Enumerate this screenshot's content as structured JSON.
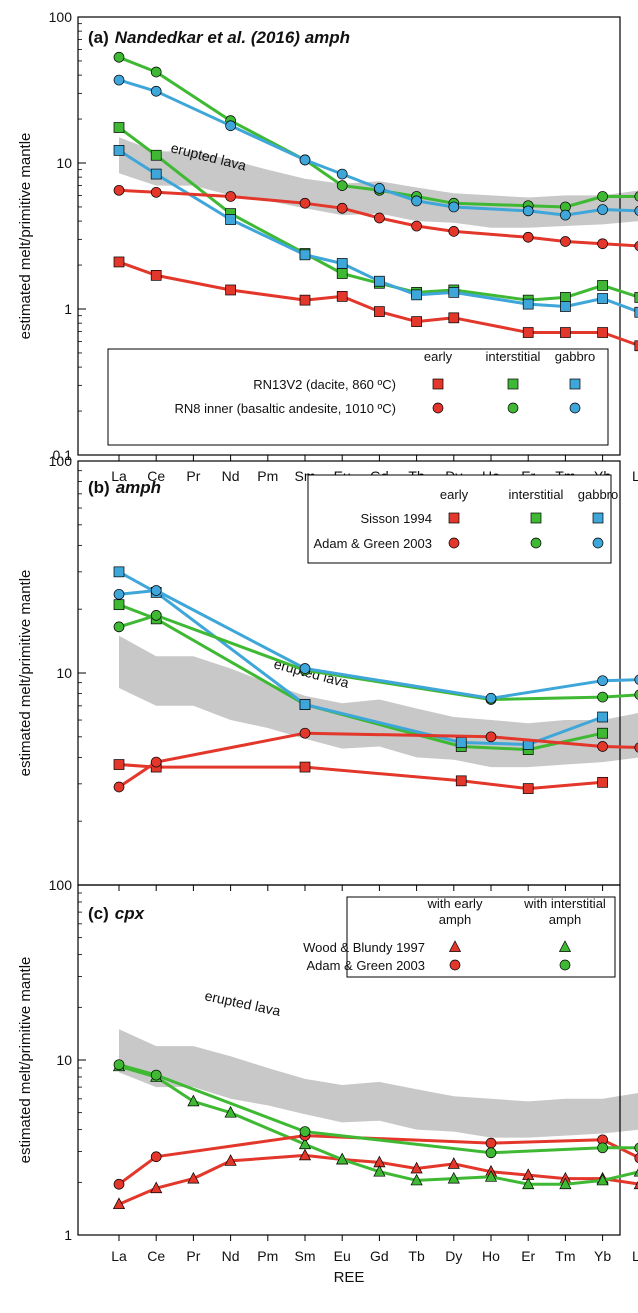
{
  "chart_data": [
    {
      "panel": "a",
      "type": "line",
      "log_y": true,
      "panel_letter": "(a)",
      "title": "Nandedkar et al. (2016) amph",
      "xlabel": "REE",
      "ylabel": "estimated melt/primitive mantle",
      "ylim": [
        0.1,
        100
      ],
      "y_ticks": [
        "100",
        "10",
        "1",
        "0.1"
      ],
      "categories": [
        "La",
        "Ce",
        "Pr",
        "Nd",
        "Pm",
        "Sm",
        "Eu",
        "Gd",
        "Tb",
        "Dy",
        "Ho",
        "Er",
        "Tm",
        "Yb",
        "Lu"
      ],
      "band": {
        "label": "erupted lava",
        "upper": [
          15.0,
          12.0,
          12.0,
          10.5,
          9.0,
          7.8,
          7.2,
          7.5,
          6.8,
          6.2,
          6.0,
          5.8,
          6.0,
          6.0,
          6.5
        ],
        "lower": [
          8.5,
          7.0,
          7.0,
          6.0,
          5.5,
          4.9,
          4.4,
          4.5,
          4.0,
          3.9,
          3.6,
          3.6,
          3.7,
          3.8,
          4.0
        ]
      },
      "legend": {
        "column_headers": [
          "early",
          "interstitial",
          "gabbro"
        ],
        "rows": [
          {
            "label": "RN13V2 (dacite, 860 ºC)",
            "marker": "square"
          },
          {
            "label": "RN8 inner (basaltic andesite, 1010 ºC)",
            "marker": "circle"
          }
        ]
      },
      "colors": {
        "early": "#e2372a",
        "interstitial": "#3fb934",
        "gabbro": "#3fa6d9",
        "band": "#c8c8c8"
      },
      "series": [
        {
          "group": "early",
          "marker": "square",
          "x": [
            "La",
            "Ce",
            "Nd",
            "Sm",
            "Eu",
            "Gd",
            "Tb",
            "Dy",
            "Er",
            "Tm",
            "Yb",
            "Lu"
          ],
          "values": [
            2.1,
            1.7,
            1.35,
            1.15,
            1.22,
            0.96,
            0.82,
            0.87,
            0.69,
            0.69,
            0.69,
            0.56
          ]
        },
        {
          "group": "interstitial",
          "marker": "square",
          "x": [
            "La",
            "Ce",
            "Nd",
            "Sm",
            "Eu",
            "Gd",
            "Tb",
            "Dy",
            "Er",
            "Tm",
            "Yb",
            "Lu"
          ],
          "values": [
            17.5,
            11.3,
            4.5,
            2.4,
            1.75,
            1.5,
            1.3,
            1.35,
            1.15,
            1.2,
            1.45,
            1.2
          ]
        },
        {
          "group": "gabbro",
          "marker": "square",
          "x": [
            "La",
            "Ce",
            "Nd",
            "Sm",
            "Eu",
            "Gd",
            "Tb",
            "Dy",
            "Er",
            "Tm",
            "Yb",
            "Lu"
          ],
          "values": [
            12.2,
            8.4,
            4.1,
            2.35,
            2.05,
            1.55,
            1.25,
            1.3,
            1.08,
            1.04,
            1.18,
            0.95
          ]
        },
        {
          "group": "early",
          "marker": "circle",
          "x": [
            "La",
            "Ce",
            "Nd",
            "Sm",
            "Eu",
            "Gd",
            "Tb",
            "Dy",
            "Er",
            "Tm",
            "Yb",
            "Lu"
          ],
          "values": [
            6.5,
            6.3,
            5.9,
            5.3,
            4.9,
            4.2,
            3.7,
            3.4,
            3.1,
            2.9,
            2.8,
            2.7
          ]
        },
        {
          "group": "interstitial",
          "marker": "circle",
          "x": [
            "La",
            "Ce",
            "Nd",
            "Sm",
            "Eu",
            "Gd",
            "Tb",
            "Dy",
            "Er",
            "Tm",
            "Yb",
            "Lu"
          ],
          "values": [
            53,
            42,
            19.5,
            10.5,
            7.0,
            6.5,
            5.9,
            5.3,
            5.1,
            5.0,
            5.9,
            5.9
          ]
        },
        {
          "group": "gabbro",
          "marker": "circle",
          "x": [
            "La",
            "Ce",
            "Nd",
            "Sm",
            "Eu",
            "Gd",
            "Tb",
            "Dy",
            "Er",
            "Tm",
            "Yb",
            "Lu"
          ],
          "values": [
            37,
            31,
            18,
            10.5,
            8.4,
            6.7,
            5.5,
            5.0,
            4.7,
            4.4,
            4.8,
            4.7
          ]
        }
      ]
    },
    {
      "panel": "b",
      "type": "line",
      "log_y": true,
      "panel_letter": "(b)",
      "title": "amph",
      "xlabel": "",
      "ylabel": "estimated melt/primitive mantle",
      "ylim": [
        1,
        100
      ],
      "y_ticks": [
        "100",
        "10"
      ],
      "categories": [
        "La",
        "Ce",
        "Pr",
        "Nd",
        "Pm",
        "Sm",
        "Eu",
        "Gd",
        "Tb",
        "Dy",
        "Ho",
        "Er",
        "Tm",
        "Yb",
        "Lu"
      ],
      "band": {
        "label": "erupted lava",
        "upper": [
          15.0,
          12.0,
          12.0,
          10.5,
          9.0,
          7.8,
          7.2,
          7.5,
          6.8,
          6.2,
          6.0,
          5.8,
          6.0,
          6.0,
          6.5
        ],
        "lower": [
          8.5,
          7.0,
          7.0,
          6.0,
          5.5,
          4.9,
          4.4,
          4.5,
          4.0,
          3.9,
          3.6,
          3.6,
          3.7,
          3.8,
          4.0
        ]
      },
      "legend": {
        "column_headers": [
          "early",
          "interstitial",
          "gabbro"
        ],
        "rows": [
          {
            "label": "Sisson 1994",
            "marker": "square"
          },
          {
            "label": "Adam & Green 2003",
            "marker": "circle"
          }
        ]
      },
      "colors": {
        "early": "#e2372a",
        "interstitial": "#3fb934",
        "gabbro": "#3fa6d9",
        "band": "#c8c8c8"
      },
      "series": [
        {
          "group": "early",
          "marker": "square",
          "x": [
            0,
            1,
            5,
            9.2,
            11,
            13
          ],
          "values": [
            3.7,
            3.6,
            3.6,
            3.1,
            2.85,
            3.05
          ]
        },
        {
          "group": "interstitial",
          "marker": "square",
          "x": [
            0,
            1,
            5,
            9.2,
            11,
            13
          ],
          "values": [
            21,
            18,
            7.1,
            4.5,
            4.35,
            5.2
          ]
        },
        {
          "group": "gabbro",
          "marker": "square",
          "x": [
            0,
            1,
            5,
            9.2,
            11,
            13
          ],
          "values": [
            30,
            24,
            7.1,
            4.7,
            4.6,
            6.2
          ]
        },
        {
          "group": "early",
          "marker": "circle",
          "x": [
            0,
            1,
            5,
            10,
            13,
            14
          ],
          "values": [
            2.9,
            3.8,
            5.2,
            5.0,
            4.5,
            4.45
          ]
        },
        {
          "group": "interstitial",
          "marker": "circle",
          "x": [
            0,
            1,
            5,
            10,
            13,
            14
          ],
          "values": [
            16.5,
            18.7,
            10.3,
            7.5,
            7.7,
            7.9
          ]
        },
        {
          "group": "gabbro",
          "marker": "circle",
          "x": [
            0,
            1,
            5,
            10,
            13,
            14
          ],
          "values": [
            23.5,
            24.5,
            10.5,
            7.6,
            9.2,
            9.3
          ]
        }
      ]
    },
    {
      "panel": "c",
      "type": "line",
      "log_y": true,
      "panel_letter": "(c)",
      "title": "cpx",
      "xlabel": "REE",
      "ylabel": "estimated melt/primitive mantle",
      "ylim": [
        1,
        100
      ],
      "y_ticks": [
        "100",
        "10",
        "1"
      ],
      "categories": [
        "La",
        "Ce",
        "Pr",
        "Nd",
        "Pm",
        "Sm",
        "Eu",
        "Gd",
        "Tb",
        "Dy",
        "Ho",
        "Er",
        "Tm",
        "Yb",
        "Lu"
      ],
      "band": {
        "label": "erupted lava",
        "upper": [
          15.0,
          12.0,
          12.0,
          10.5,
          9.0,
          7.8,
          7.2,
          7.5,
          6.8,
          6.2,
          6.0,
          5.8,
          6.0,
          6.0,
          6.5
        ],
        "lower": [
          8.5,
          7.0,
          7.0,
          6.0,
          5.5,
          4.9,
          4.4,
          4.5,
          4.0,
          3.9,
          3.6,
          3.6,
          3.7,
          3.8,
          4.0
        ]
      },
      "legend": {
        "column_headers": [
          "with early amph",
          "with interstitial amph"
        ],
        "column_header_lines": [
          [
            "with early",
            "amph"
          ],
          [
            "with interstitial",
            "amph"
          ]
        ],
        "rows": [
          {
            "label": "Wood & Blundy 1997",
            "marker": "triangle"
          },
          {
            "label": "Adam & Green 2003",
            "marker": "circle"
          }
        ]
      },
      "colors": {
        "early": "#e2372a",
        "interstitial": "#3fb934",
        "band": "#c8c8c8"
      },
      "series": [
        {
          "group": "early",
          "marker": "triangle",
          "x": [
            "La",
            "Ce",
            "Pr",
            "Nd",
            "Sm",
            "Eu",
            "Gd",
            "Tb",
            "Dy",
            "Ho",
            "Er",
            "Tm",
            "Yb",
            "Lu"
          ],
          "values": [
            1.5,
            1.85,
            2.1,
            2.65,
            2.85,
            2.7,
            2.6,
            2.4,
            2.55,
            2.3,
            2.2,
            2.1,
            2.1,
            1.95
          ]
        },
        {
          "group": "interstitial",
          "marker": "triangle",
          "x": [
            "La",
            "Ce",
            "Pr",
            "Nd",
            "Sm",
            "Eu",
            "Gd",
            "Tb",
            "Dy",
            "Ho",
            "Er",
            "Tm",
            "Yb",
            "Lu"
          ],
          "values": [
            9.2,
            8.0,
            5.8,
            5.0,
            3.3,
            2.7,
            2.3,
            2.05,
            2.1,
            2.15,
            1.95,
            1.95,
            2.05,
            2.3
          ]
        },
        {
          "group": "early",
          "marker": "circle",
          "x": [
            "La",
            "Ce",
            "Sm",
            "Ho",
            "Yb",
            "Lu"
          ],
          "values": [
            1.95,
            2.8,
            3.7,
            3.35,
            3.5,
            2.75
          ]
        },
        {
          "group": "interstitial",
          "marker": "circle",
          "x": [
            "La",
            "Ce",
            "Sm",
            "Ho",
            "Yb",
            "Lu"
          ],
          "values": [
            9.4,
            8.2,
            3.9,
            2.95,
            3.15,
            3.15
          ]
        }
      ]
    }
  ]
}
